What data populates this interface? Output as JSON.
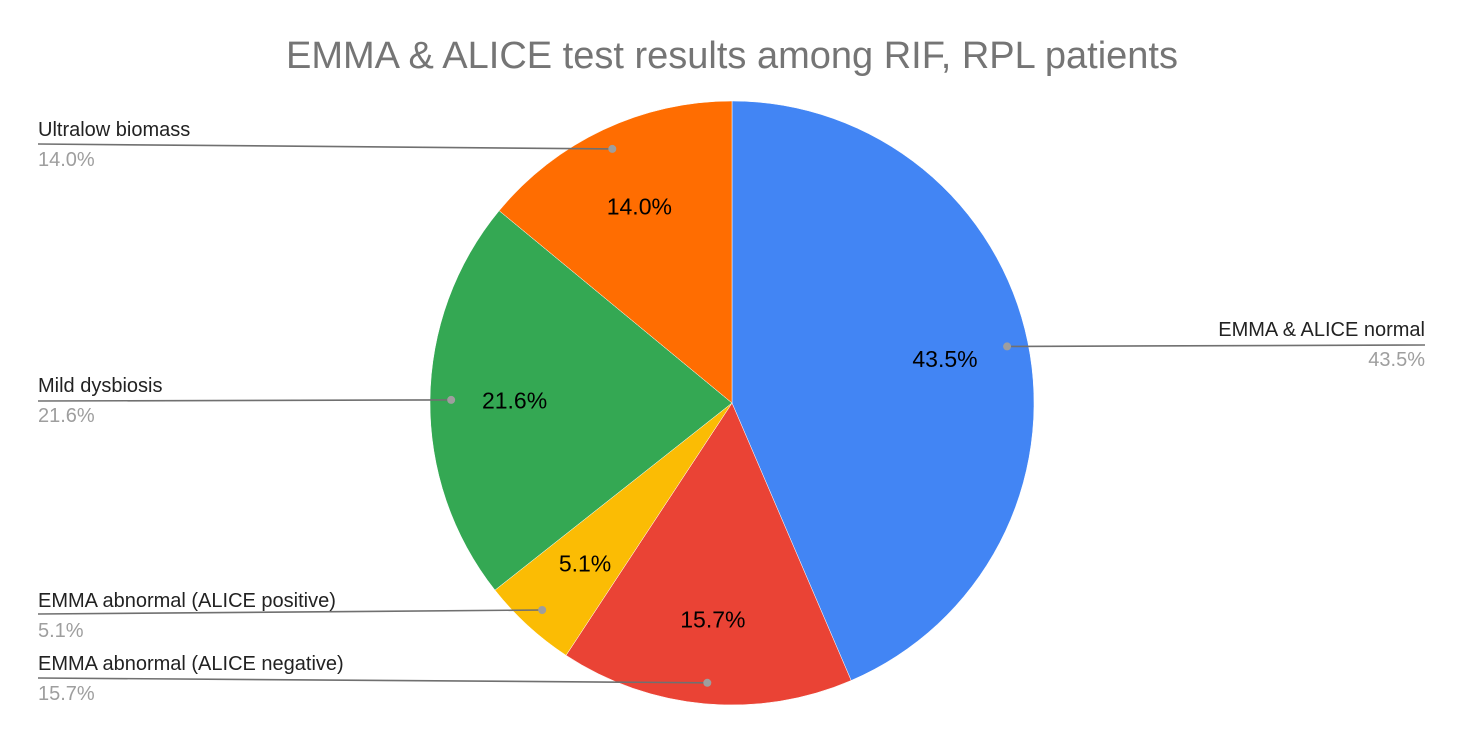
{
  "chart_data": {
    "type": "pie",
    "title": "EMMA & ALICE test results among RIF, RPL patients",
    "slices": [
      {
        "label": "EMMA & ALICE normal",
        "value": 43.5,
        "value_label": "43.5%",
        "color": "#4285F4"
      },
      {
        "label": "EMMA abnormal (ALICE negative)",
        "value": 15.7,
        "value_label": "15.7%",
        "color": "#EA4335"
      },
      {
        "label": "EMMA abnormal (ALICE positive)",
        "value": 5.1,
        "value_label": "5.1%",
        "color": "#FBBC04"
      },
      {
        "label": "Mild dysbiosis",
        "value": 21.6,
        "value_label": "21.6%",
        "color": "#34A853"
      },
      {
        "label": "Ultralow biomass",
        "value": 14.0,
        "value_label": "14.0%",
        "color": "#FF6D01"
      }
    ],
    "legend": "callout-labels"
  }
}
